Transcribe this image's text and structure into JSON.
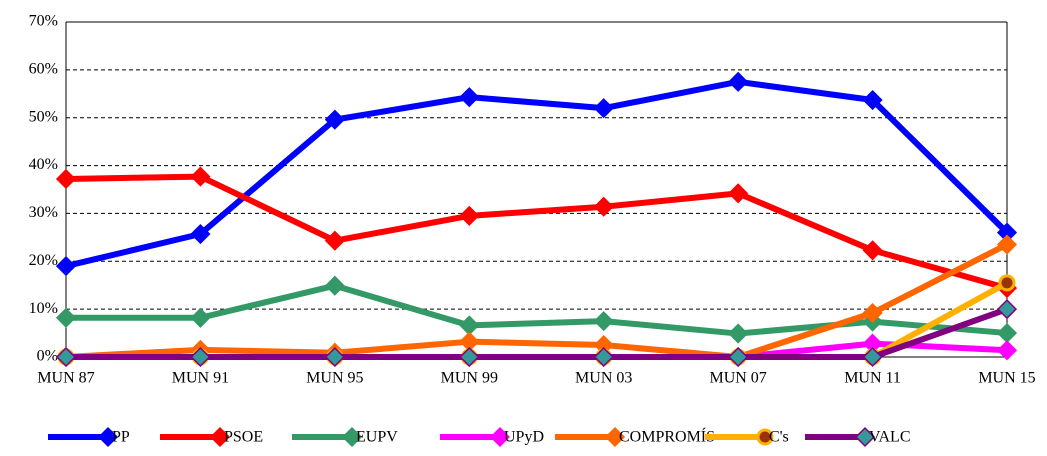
{
  "chart_data": {
    "type": "line",
    "categories": [
      "MUN 87",
      "MUN 91",
      "MUN 95",
      "MUN 99",
      "MUN 03",
      "MUN 07",
      "MUN 11",
      "MUN 15"
    ],
    "series": [
      {
        "name": "PP",
        "color": "#0000ff",
        "marker": "diamond",
        "values": [
          19,
          25.7,
          49.6,
          54.3,
          52,
          57.5,
          53.7,
          26
        ]
      },
      {
        "name": "PSOE",
        "color": "#ff0000",
        "marker": "diamond",
        "values": [
          37.2,
          37.7,
          24.3,
          29.5,
          31.4,
          34.2,
          22.3,
          14.4
        ]
      },
      {
        "name": "EUPV",
        "color": "#339966",
        "marker": "diamond",
        "values": [
          8.2,
          8.2,
          14.9,
          6.6,
          7.5,
          4.9,
          7.4,
          5
        ]
      },
      {
        "name": "UPyD",
        "color": "#ff00ff",
        "marker": "diamond",
        "values": [
          0,
          0,
          0,
          0,
          0,
          0,
          2.8,
          1.4
        ]
      },
      {
        "name": "COMPROMÍS",
        "color": "#ff6600",
        "marker": "diamond",
        "values": [
          0,
          1.5,
          0.9,
          3.2,
          2.5,
          0,
          9.2,
          23.5
        ]
      },
      {
        "name": "C's",
        "color": "#ffb000",
        "marker": "circle",
        "marker_color": "#993300",
        "values": [
          0,
          0,
          0,
          0,
          0,
          0,
          0,
          15.5
        ]
      },
      {
        "name": "VALC",
        "color": "#800080",
        "marker": "diamond",
        "marker_color": "#339999",
        "values": [
          0,
          0,
          0,
          0,
          0,
          0,
          0,
          10
        ]
      }
    ],
    "ylim": [
      0,
      70
    ],
    "yticks": [
      {
        "value": 0,
        "label": "0%"
      },
      {
        "value": 10,
        "label": "10%"
      },
      {
        "value": 20,
        "label": "20%"
      },
      {
        "value": 30,
        "label": "30%"
      },
      {
        "value": 40,
        "label": "40%"
      },
      {
        "value": 50,
        "label": "50%"
      },
      {
        "value": 60,
        "label": "60%"
      },
      {
        "value": 70,
        "label": "70%"
      }
    ],
    "grid": true,
    "legend": "bottom"
  }
}
